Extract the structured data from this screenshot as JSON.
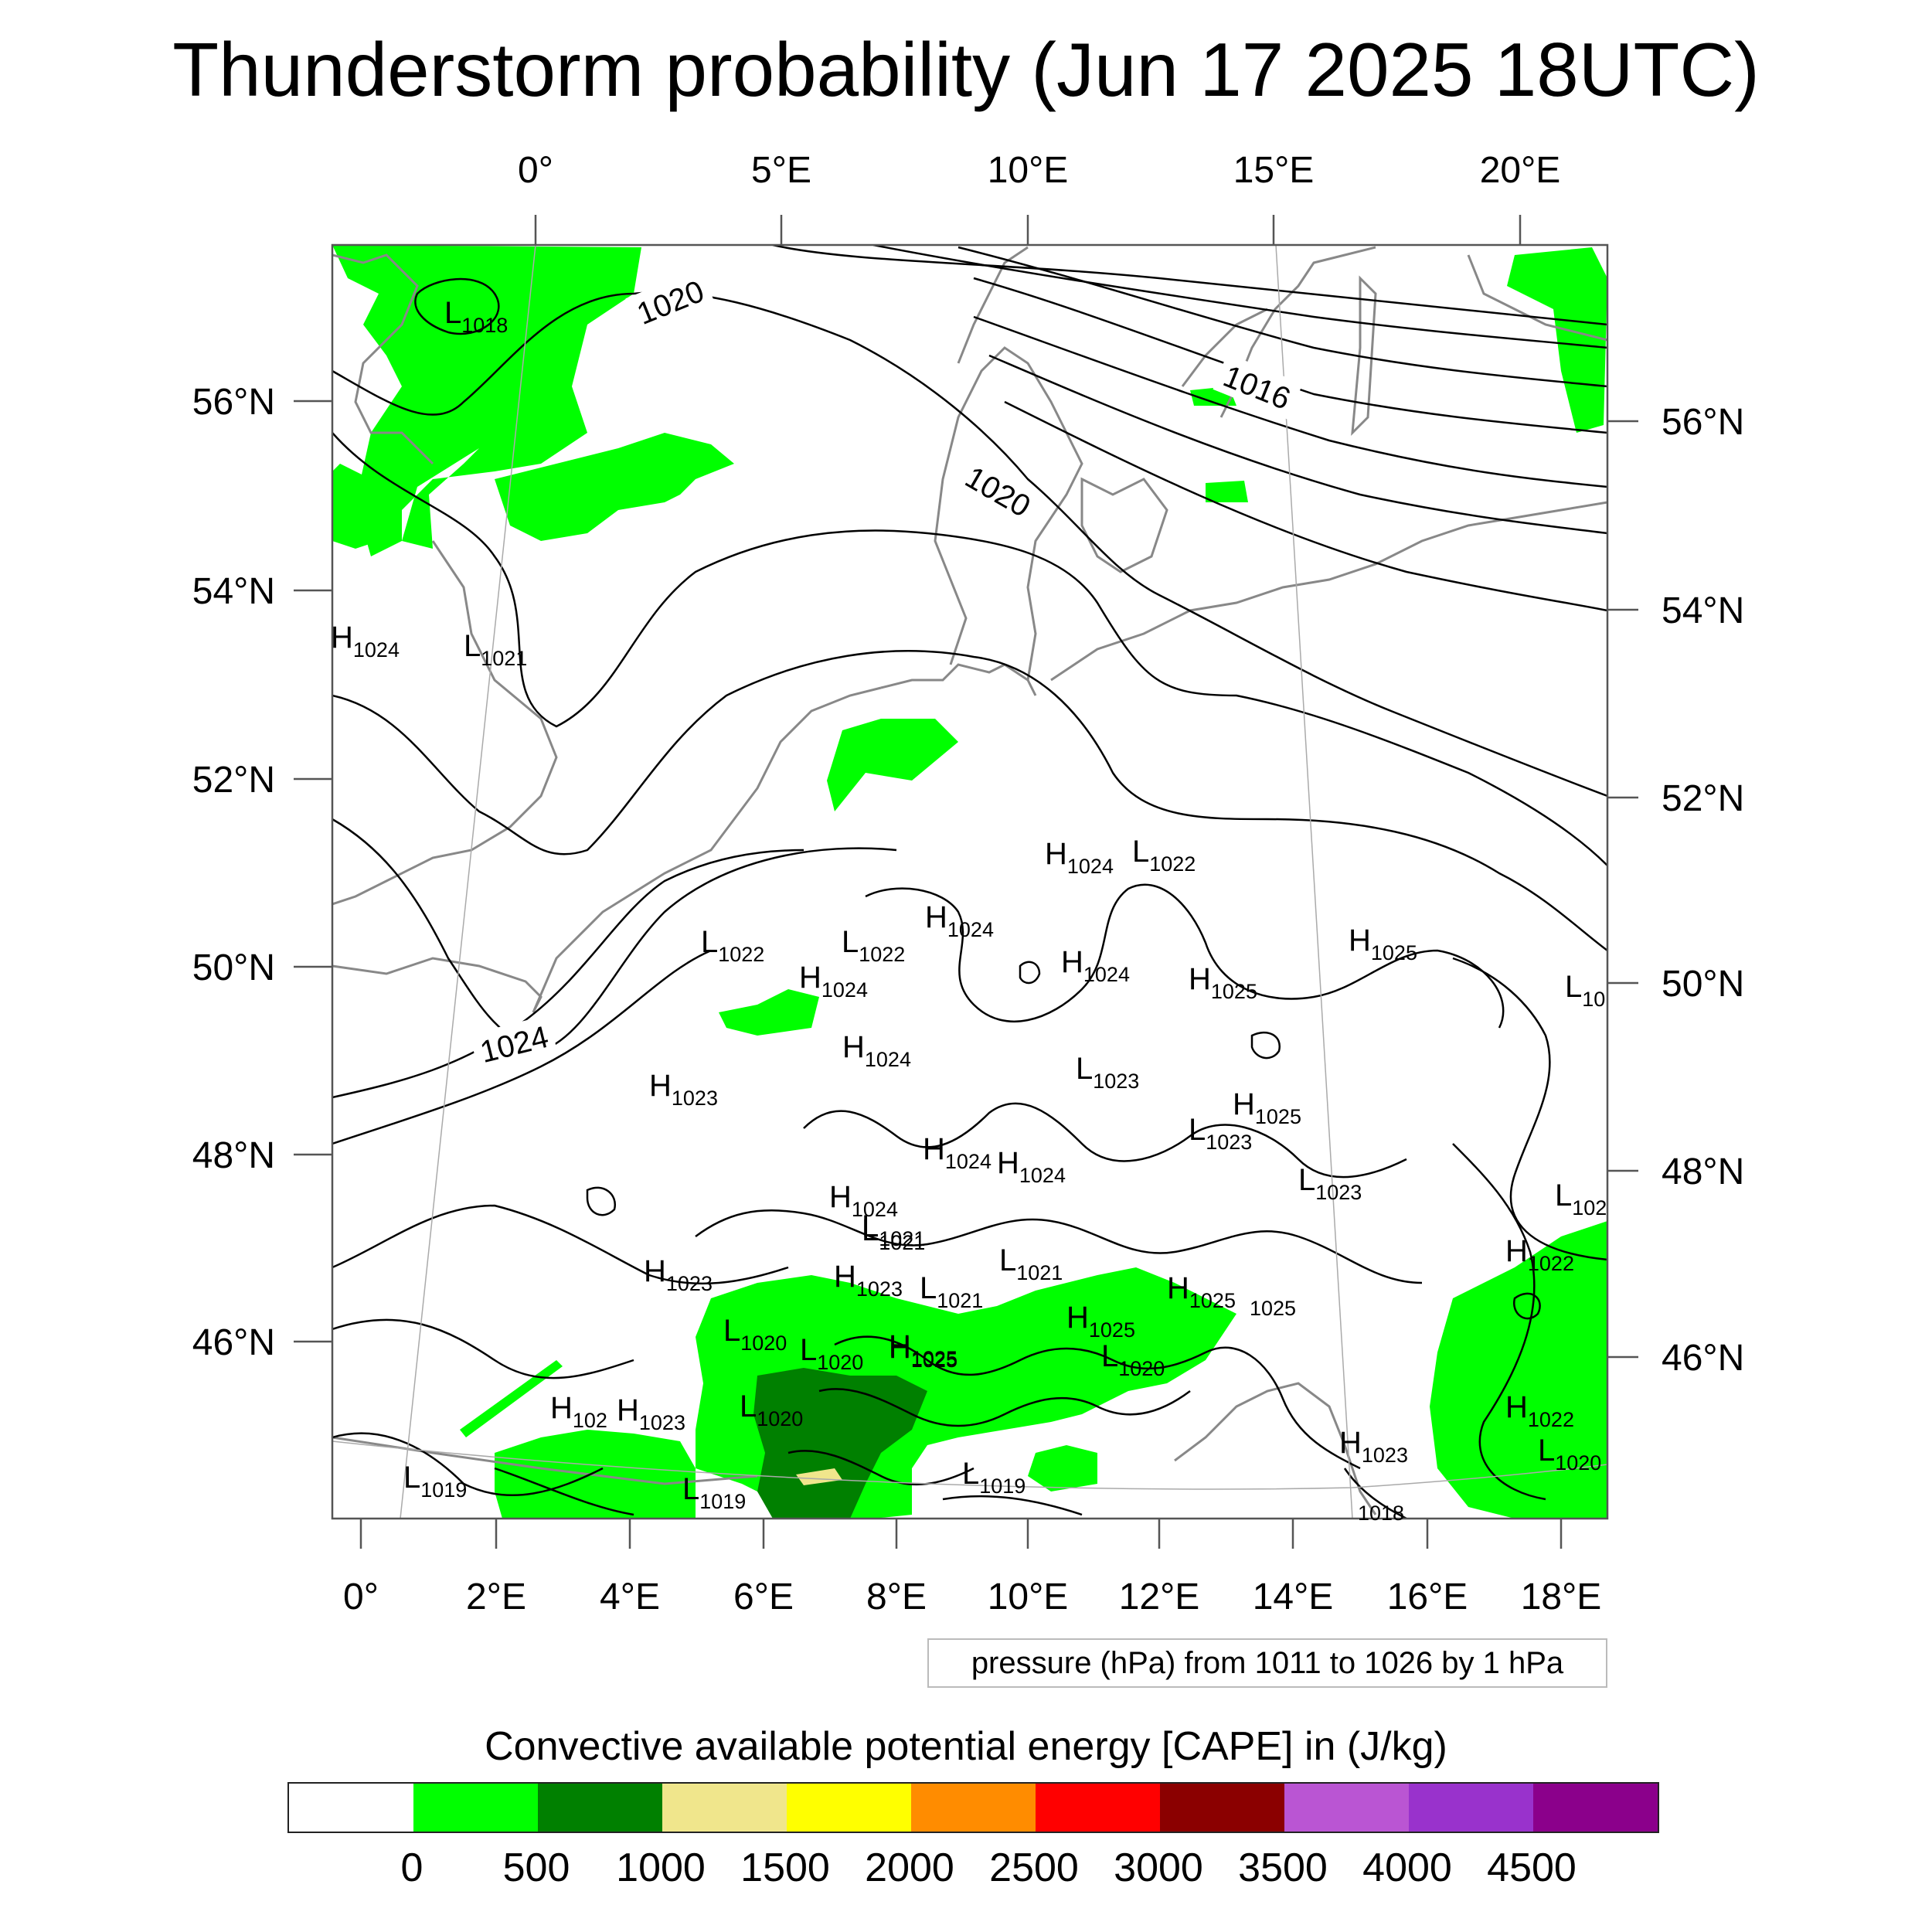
{
  "title": "Thunderstorm probability (Jun 17 2025 18UTC)",
  "top_lon_labels": [
    "0°",
    "5°E",
    "10°E",
    "15°E",
    "20°E"
  ],
  "bottom_lon_labels": [
    "0°",
    "2°E",
    "4°E",
    "6°E",
    "8°E",
    "10°E",
    "12°E",
    "14°E",
    "16°E",
    "18°E"
  ],
  "left_lat_labels": [
    "56°N",
    "54°N",
    "52°N",
    "50°N",
    "48°N",
    "46°N"
  ],
  "right_lat_labels": [
    "56°N",
    "54°N",
    "52°N",
    "50°N",
    "48°N",
    "46°N"
  ],
  "contour_labels": [
    "1020",
    "1016",
    "1020",
    "1024"
  ],
  "pressure_centers": [
    {
      "t": "L",
      "v": "1018"
    },
    {
      "t": "H",
      "v": "1024"
    },
    {
      "t": "L",
      "v": "1021"
    },
    {
      "t": "H",
      "v": "1024"
    },
    {
      "t": "L",
      "v": "1022"
    },
    {
      "t": "H",
      "v": "1024"
    },
    {
      "t": "L",
      "v": "1022"
    },
    {
      "t": "L",
      "v": "1022"
    },
    {
      "t": "H",
      "v": "1024"
    },
    {
      "t": "H",
      "v": "1024"
    },
    {
      "t": "H",
      "v": "1025"
    },
    {
      "t": "H",
      "v": "1025"
    },
    {
      "t": "L",
      "v": "10"
    },
    {
      "t": "H",
      "v": "1024"
    },
    {
      "t": "L",
      "v": "1023"
    },
    {
      "t": "H",
      "v": "1023"
    },
    {
      "t": "H",
      "v": "1025"
    },
    {
      "t": "L",
      "v": "1023"
    },
    {
      "t": "H",
      "v": "1024"
    },
    {
      "t": "H",
      "v": "1024"
    },
    {
      "t": "L",
      "v": "1023"
    },
    {
      "t": "L",
      "v": "102"
    },
    {
      "t": "H",
      "v": "1024"
    },
    {
      "t": "L",
      "v": "1021"
    },
    {
      "t": "H",
      "v": "1022"
    },
    {
      "t": "H",
      "v": "1023"
    },
    {
      "t": "H",
      "v": "1023"
    },
    {
      "t": "L",
      "v": "1021"
    },
    {
      "t": "H",
      "v": "1025"
    },
    {
      "t": "L",
      "v": "1021"
    },
    {
      "t": "H",
      "v": "1025"
    },
    {
      "t": "L",
      "v": "1021"
    },
    {
      "t": "",
      "v": "1025"
    },
    {
      "t": "L",
      "v": "1020"
    },
    {
      "t": "L",
      "v": "1020"
    },
    {
      "t": "H",
      "v": "1025"
    },
    {
      "t": "L",
      "v": "1020"
    },
    {
      "t": "H",
      "v": "1025"
    },
    {
      "t": "H",
      "v": "102"
    },
    {
      "t": "H",
      "v": "1023"
    },
    {
      "t": "L",
      "v": "1020"
    },
    {
      "t": "H",
      "v": "1022"
    },
    {
      "t": "L",
      "v": "1020"
    },
    {
      "t": "H",
      "v": "1023"
    },
    {
      "t": "L",
      "v": "1019"
    },
    {
      "t": "L",
      "v": "1019"
    },
    {
      "t": "L",
      "v": "1019"
    },
    {
      "t": "",
      "v": "1018"
    }
  ],
  "pressure_note": "pressure (hPa) from 1011 to 1026 by 1 hPa",
  "colorbar": {
    "title": "Convective available potential energy [CAPE] in (J/kg)",
    "colors": [
      "#ffffff",
      "#00ff00",
      "#008000",
      "#f0e68c",
      "#ffff00",
      "#ff8c00",
      "#ff0000",
      "#8b0000",
      "#ba55d3",
      "#9932cc",
      "#8b008b"
    ],
    "labels": [
      "0",
      "500",
      "1000",
      "1500",
      "2000",
      "2500",
      "3000",
      "3500",
      "4000",
      "4500"
    ]
  }
}
